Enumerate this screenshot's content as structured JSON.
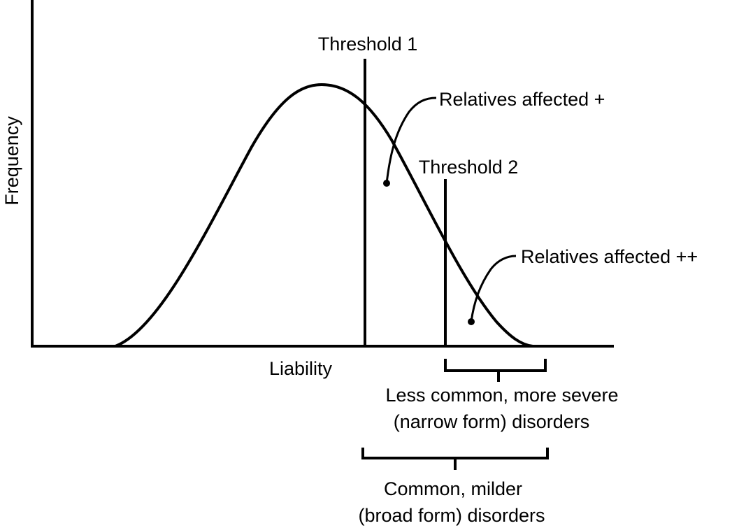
{
  "axes": {
    "y_label": "Frequency",
    "x_label": "Liability"
  },
  "thresholds": [
    {
      "label": "Threshold 1"
    },
    {
      "label": "Threshold 2"
    }
  ],
  "annotations": [
    {
      "label": "Relatives affected +"
    },
    {
      "label": "Relatives affected ++"
    }
  ],
  "brackets": {
    "narrow": {
      "line1": "Less common, more severe",
      "line2": "(narrow form) disorders"
    },
    "broad": {
      "line1": "Common, milder",
      "line2": "(broad form) disorders"
    }
  },
  "colors": {
    "ink": "#000000",
    "background": "#ffffff"
  }
}
